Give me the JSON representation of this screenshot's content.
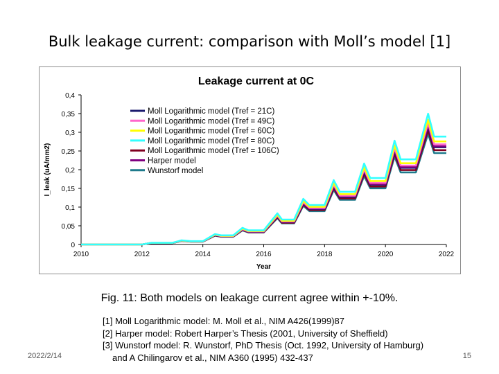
{
  "slide": {
    "title": "Bulk leakage current: comparison with Moll’s model [1]",
    "caption": "Fig. 11: Both models on leakage current agree within +-10%.",
    "references": [
      "[1] Moll Logarithmic model: M. Moll et al., NIM A426(1999)87",
      "[2] Harper model: Robert Harper’s Thesis (2001, University of Sheffield)",
      "[3] Wunstorf model: R. Wunstorf, PhD Thesis (Oct. 1992, University of Hamburg)",
      "and A Chilingarov et al., NIM A360 (1995) 432-437"
    ],
    "date": "2022/2/14",
    "page_number": "15"
  },
  "chart_data": {
    "type": "line",
    "title": "Leakage current at 0C",
    "xlabel": "Year",
    "ylabel": "I_leak (uA/mm2)",
    "xlim": [
      2010,
      2022
    ],
    "ylim": [
      0,
      0.4
    ],
    "x_ticks": [
      "2010",
      "2012",
      "2014",
      "2016",
      "2018",
      "2020",
      "2022"
    ],
    "y_ticks": [
      "0",
      "0,05",
      "0,1",
      "0,15",
      "0,2",
      "0,25",
      "0,3",
      "0,35",
      "0,4"
    ],
    "legend_position": "top-right (inside plot)",
    "base_profile": {
      "x": [
        2010.0,
        2011.0,
        2012.0,
        2012.3,
        2012.5,
        2013.0,
        2013.3,
        2013.6,
        2014.0,
        2014.4,
        2014.6,
        2015.0,
        2015.3,
        2015.5,
        2016.0,
        2016.45,
        2016.6,
        2017.0,
        2017.3,
        2017.5,
        2018.0,
        2018.3,
        2018.5,
        2019.0,
        2019.3,
        2019.5,
        2020.0,
        2020.3,
        2020.5,
        2021.0,
        2021.4,
        2021.6,
        2022.0
      ],
      "y": [
        0.0,
        0.0,
        0.0,
        0.004,
        0.004,
        0.004,
        0.01,
        0.008,
        0.008,
        0.025,
        0.022,
        0.022,
        0.04,
        0.034,
        0.034,
        0.075,
        0.06,
        0.06,
        0.11,
        0.095,
        0.095,
        0.155,
        0.127,
        0.127,
        0.195,
        0.16,
        0.16,
        0.25,
        0.205,
        0.205,
        0.315,
        0.26,
        0.26
      ]
    },
    "series": [
      {
        "name": "Moll Logarithmic model (Tref = 21C)",
        "color": "#1a1a6e",
        "scale": 1.0
      },
      {
        "name": "Moll Logarithmic model (Tref = 49C)",
        "color": "#ff66cc",
        "scale": 1.03
      },
      {
        "name": "Moll Logarithmic model (Tref = 60C)",
        "color": "#ffff00",
        "scale": 1.06
      },
      {
        "name": "Moll Logarithmic model (Tref = 80C)",
        "color": "#33ffff",
        "scale": 1.11
      },
      {
        "name": "Moll Logarithmic model (Tref = 106C)",
        "color": "#800020",
        "scale": 0.97
      },
      {
        "name": "Harper model",
        "color": "#800080",
        "scale": 1.01
      },
      {
        "name": "Wunstorf model",
        "color": "#1f7a8c",
        "scale": 0.94
      }
    ]
  }
}
